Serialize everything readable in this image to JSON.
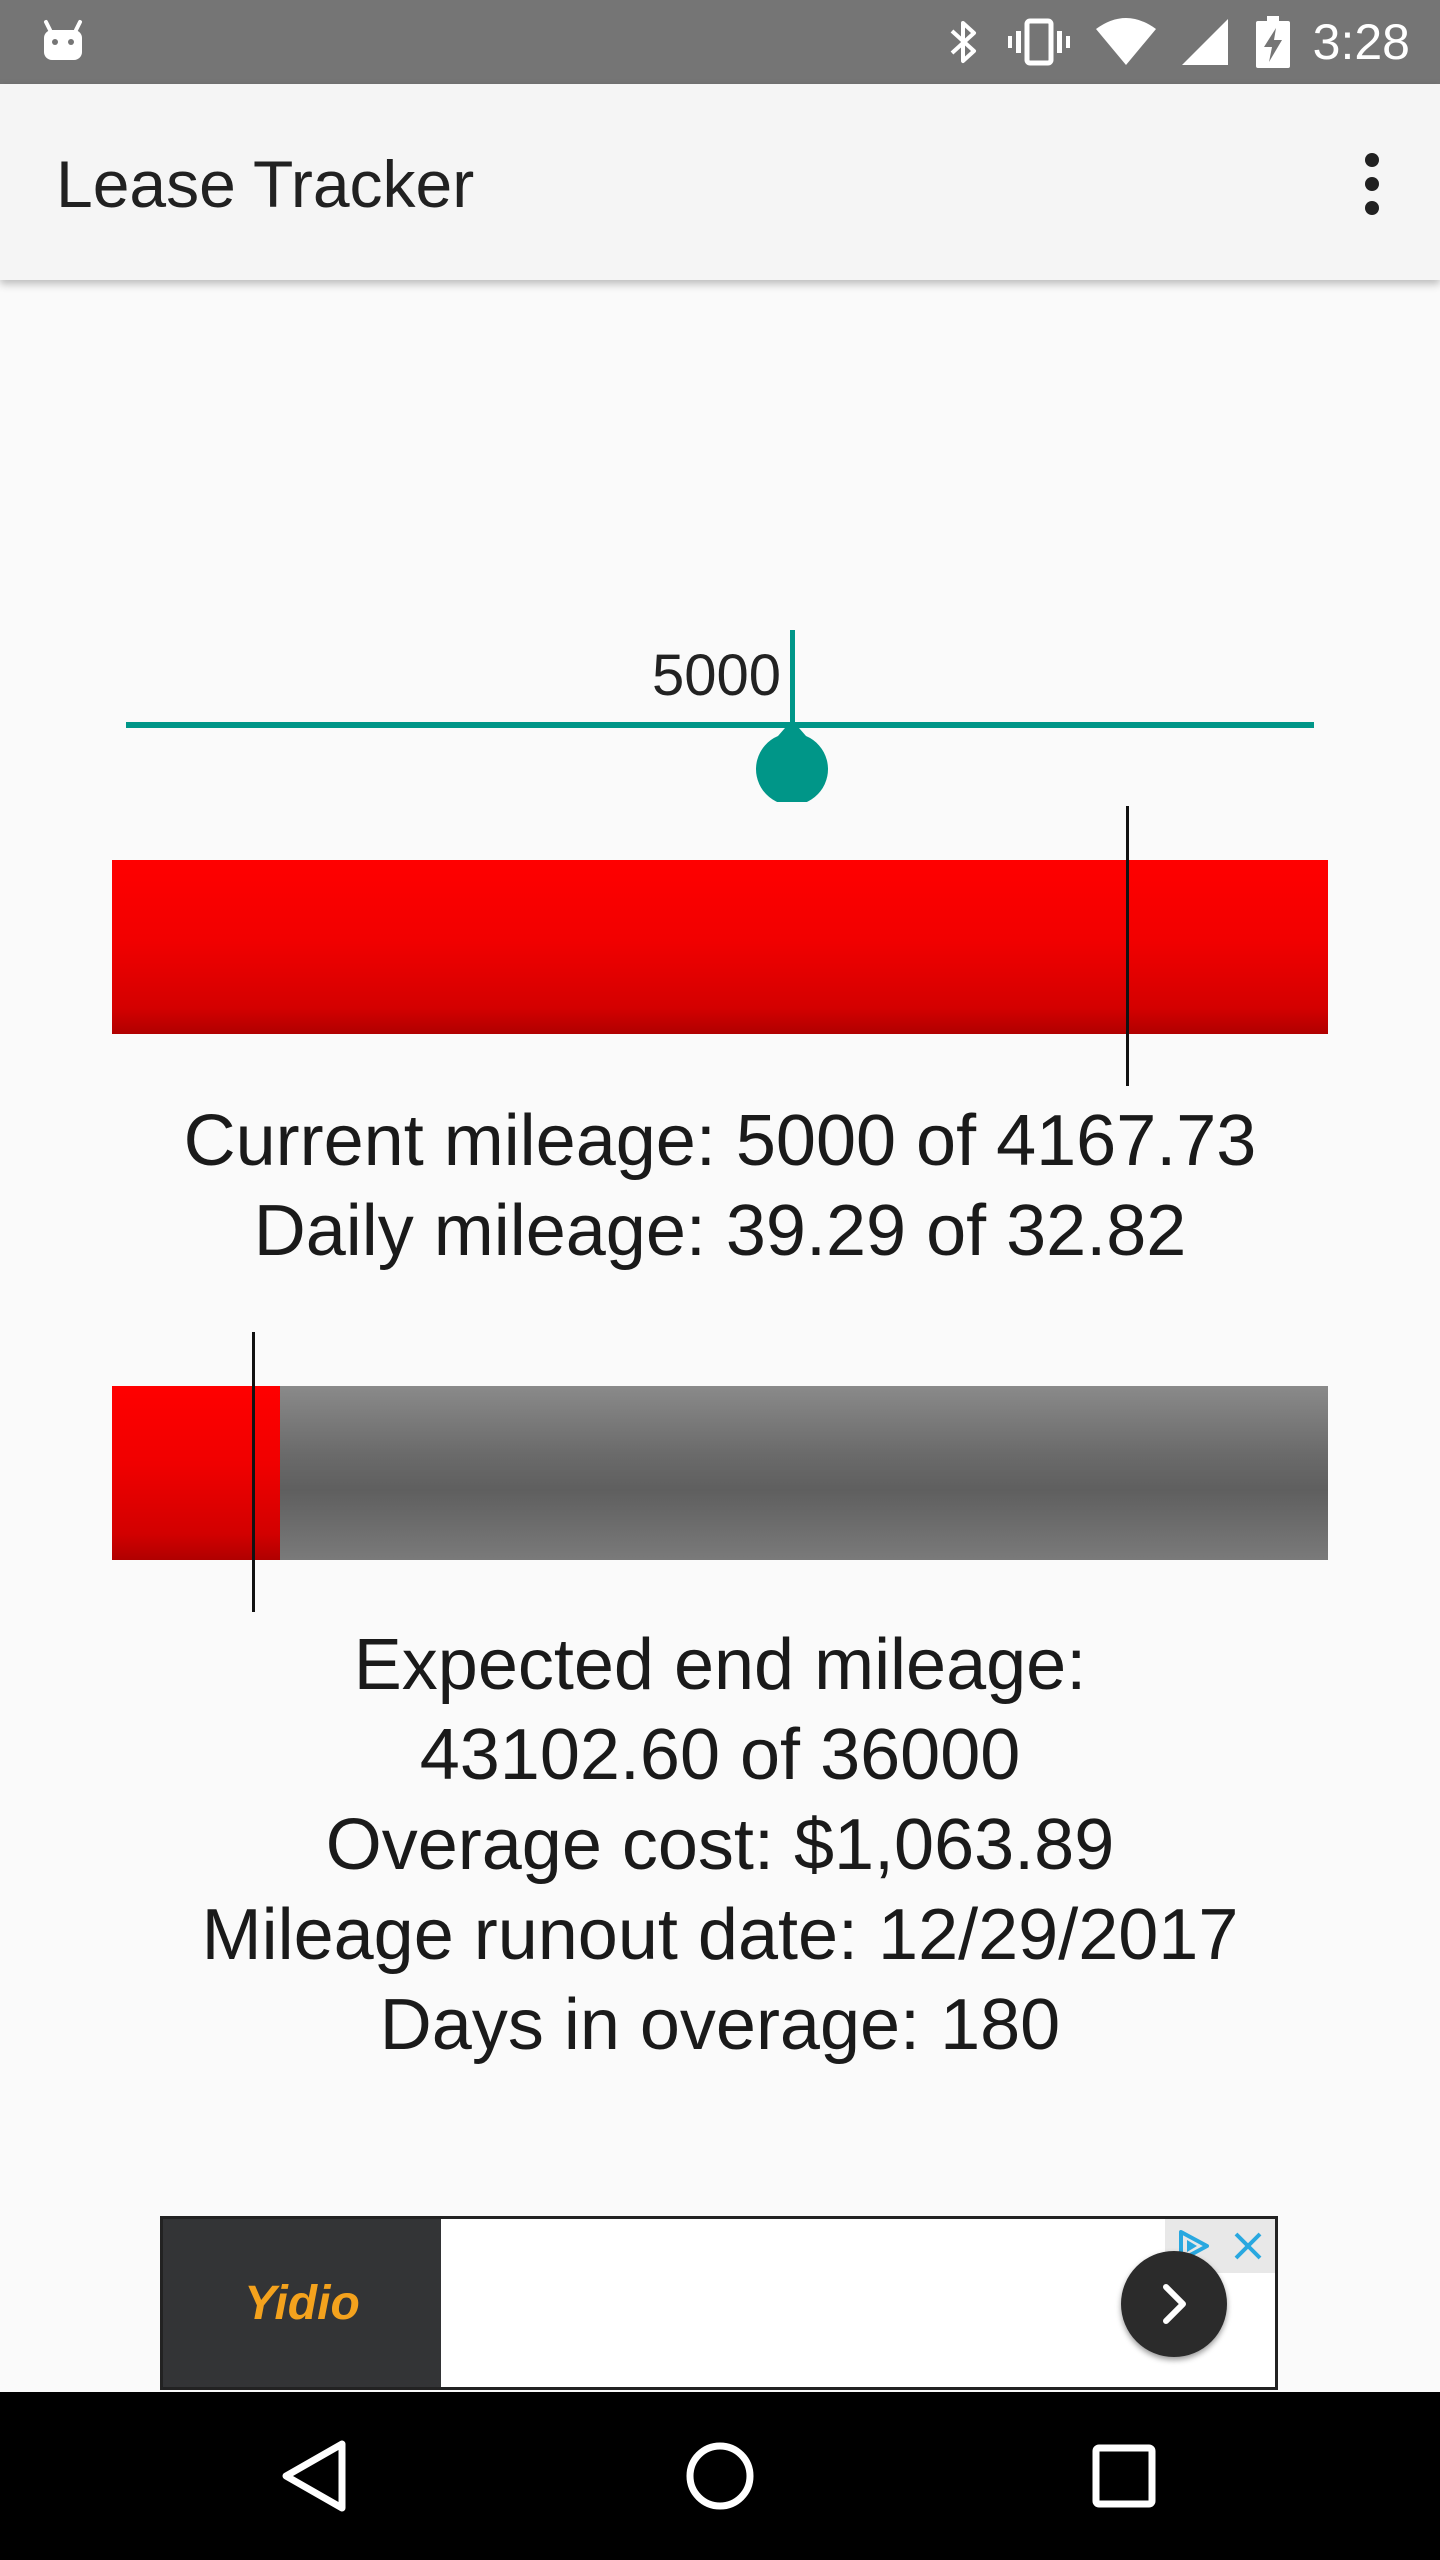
{
  "status_bar": {
    "time": "3:28",
    "icons": [
      "android-icon",
      "bluetooth-icon",
      "vibrate-icon",
      "wifi-icon",
      "cell-signal-icon",
      "battery-charging-icon"
    ]
  },
  "app_bar": {
    "title": "Lease Tracker",
    "menu_icon": "more-vert-icon"
  },
  "slider": {
    "value": "5000",
    "position_fraction": 0.5,
    "color": "#009688"
  },
  "mileage_bar": {
    "fill_fraction": 1.0,
    "marker_fraction": 0.835,
    "fill_color": "#ff0000"
  },
  "current_info": {
    "current_mileage": "Current mileage: 5000 of 4167.73",
    "daily_mileage": "Daily mileage: 39.29 of 32.82"
  },
  "time_bar": {
    "fill_fraction": 0.14,
    "marker_fraction": 0.117,
    "fill_color": "#ff0000",
    "remaining_color": "#6a6a6a"
  },
  "summary": {
    "expected_end_label": "Expected end mileage:",
    "expected_end_value": "43102.60 of 36000",
    "overage_cost": "Overage cost: $1,063.89",
    "runout_date": "Mileage runout date: 12/29/2017",
    "days_in_overage": "Days in overage: 180"
  },
  "ad": {
    "brand": "Yidio",
    "brand_color": "#f4a21d"
  },
  "nav_bar": {
    "buttons": [
      "back-icon",
      "home-icon",
      "recents-icon"
    ]
  }
}
